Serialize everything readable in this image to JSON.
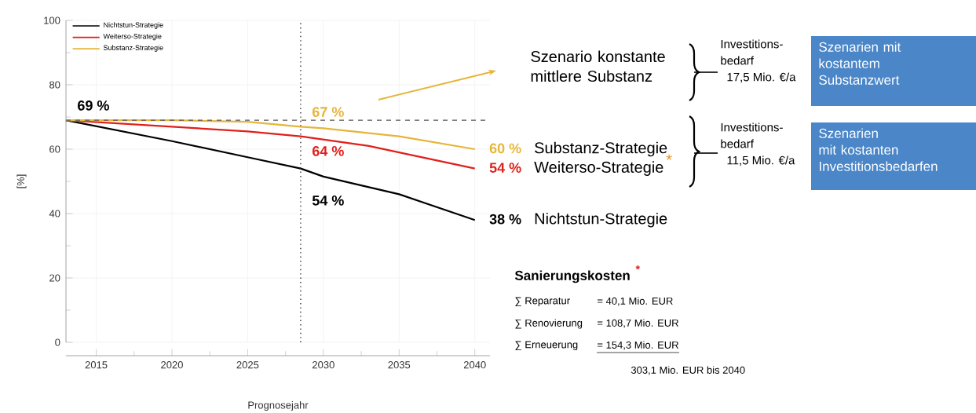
{
  "chart_data": {
    "type": "line",
    "xlabel": "Prognosejahr",
    "ylabel": "[%]",
    "xlim": [
      2013,
      2041
    ],
    "ylim": [
      0,
      100
    ],
    "xticks": [
      2015,
      2020,
      2025,
      2030,
      2035,
      2040
    ],
    "yticks": [
      0,
      20,
      40,
      60,
      80,
      100
    ],
    "grid": true,
    "legend": "top left",
    "marker": "none",
    "line_style": "solid",
    "series": [
      {
        "name": "Nichtstun-Strategie",
        "color": "#000000",
        "x": [
          2013,
          2020,
          2025,
          2028.5,
          2030,
          2035,
          2040
        ],
        "values": [
          69,
          62.5,
          57.5,
          54,
          51.5,
          46,
          38
        ],
        "value_labels": [
          "69 %",
          null,
          null,
          "54 %",
          null,
          null,
          "38 %"
        ]
      },
      {
        "name": "Weiterso-Strategie",
        "color": "#e0201b",
        "x": [
          2013,
          2020,
          2025,
          2028.5,
          2030,
          2033,
          2035,
          2040
        ],
        "values": [
          69,
          67,
          65.5,
          64,
          63,
          61,
          59,
          54
        ],
        "value_labels": [
          null,
          null,
          null,
          "64 %",
          null,
          null,
          null,
          "54 %"
        ]
      },
      {
        "name": "Substanz-Strategie",
        "color": "#e6b53a",
        "x": [
          2013,
          2020,
          2025,
          2028.5,
          2030,
          2035,
          2040
        ],
        "values": [
          69,
          69,
          68.5,
          67,
          66.5,
          64,
          60
        ],
        "value_labels": [
          null,
          null,
          null,
          "67 %",
          null,
          null,
          "60 %"
        ]
      }
    ],
    "ref_lines": [
      {
        "axis": "y",
        "value": 69,
        "color": "#555555",
        "line_style": "dashed"
      },
      {
        "axis": "x",
        "value": 2028.5,
        "color": "#333333",
        "line_style": "dotted"
      }
    ],
    "annotations": [
      "Szenario konstante mittlere Substanz",
      "Investitions-",
      "Szenarien mit kostantem Substanzwert",
      "Investitions-",
      "Szenarien mit kostanten Investitionsbedarfen",
      "*",
      "Sanierungskosten",
      "*",
      "∑ Reparatur",
      "= 40,1 Mio. EUR",
      "∑ Renovierung",
      "= 108,7 Mio. EUR",
      "∑ Erneuerung",
      "= 154,3 Mio. EUR",
      "303,1 Mio. EUR bis 2040",
      "bedarf",
      "17,5 Mio. €/a",
      "bedarf",
      "11,5 Mio. €/a"
    ]
  }
}
